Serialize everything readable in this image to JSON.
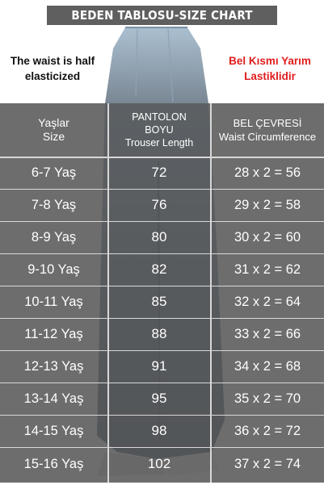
{
  "title": "BEDEN TABLOSU-SIZE CHART",
  "note_en": [
    "The waist is half",
    "elasticized"
  ],
  "note_tr": [
    "Bel Kısmı Yarım",
    "Lastiklidir"
  ],
  "headers": {
    "age": [
      "Yaşlar",
      "Size"
    ],
    "length": [
      "PANTOLON",
      "BOYU",
      "Trouser Length"
    ],
    "waist": [
      "BEL  ÇEVRESİ",
      "Waist Circumference"
    ]
  },
  "rows": [
    {
      "age": "6-7 Yaş",
      "length": "72",
      "waist": "28 x 2 = 56"
    },
    {
      "age": "7-8 Yaş",
      "length": "76",
      "waist": "29 x 2 = 58"
    },
    {
      "age": "8-9 Yaş",
      "length": "80",
      "waist": "30 x 2 = 60"
    },
    {
      "age": "9-10 Yaş",
      "length": "82",
      "waist": "31 x 2 = 62"
    },
    {
      "age": "10-11 Yaş",
      "length": "85",
      "waist": "32 x 2 = 64"
    },
    {
      "age": "11-12 Yaş",
      "length": "88",
      "waist": "33 x 2 = 66"
    },
    {
      "age": "12-13 Yaş",
      "length": "91",
      "waist": "34 x 2 = 68"
    },
    {
      "age": "13-14 Yaş",
      "length": "95",
      "waist": "35 x 2 = 70"
    },
    {
      "age": "14-15 Yaş",
      "length": "98",
      "waist": "36 x 2 = 72"
    },
    {
      "age": "15-16 Yaş",
      "length": "102",
      "waist": "37 x 2 = 74"
    }
  ],
  "colors": {
    "title_bar": "#5f5f5f",
    "table_bg": "#484848",
    "note_tr": "#e11d1d",
    "denim_light": "#a9bfd0",
    "denim_dark": "#6f7c88"
  }
}
